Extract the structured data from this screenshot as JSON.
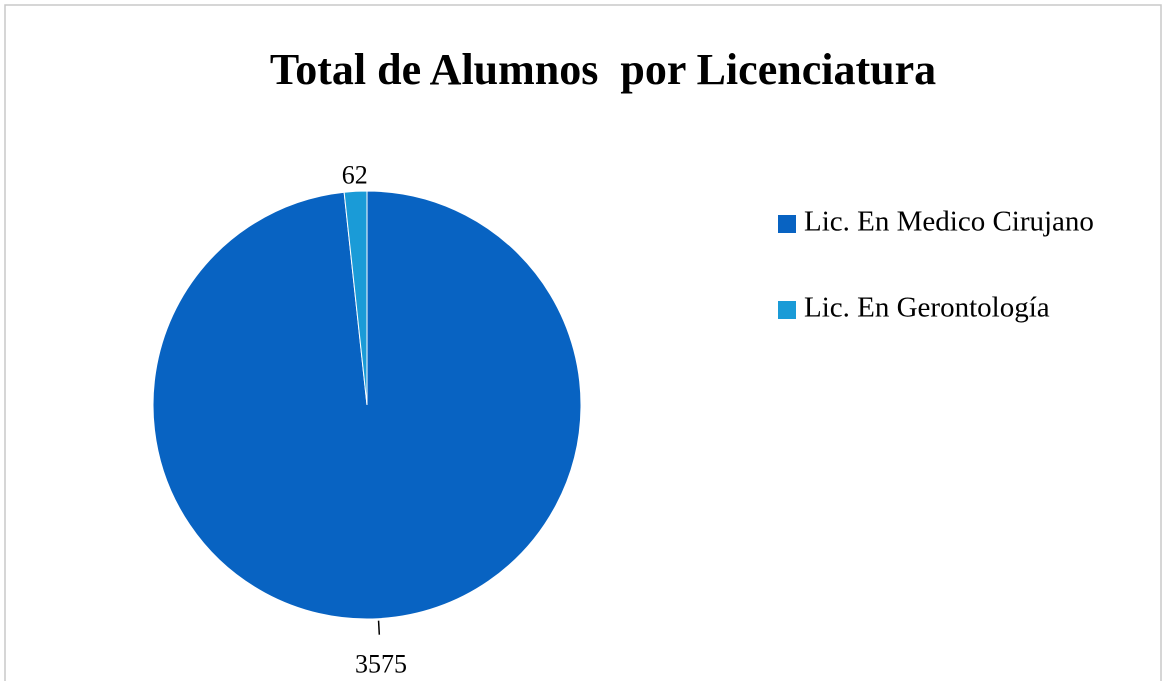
{
  "chart_data": {
    "type": "pie",
    "title": "Total de Alumnos  por Licenciatura",
    "categories": [
      "Lic. En Medico Cirujano",
      "Lic. En Gerontología"
    ],
    "values": [
      3575,
      62
    ],
    "colors": [
      "#0863c2",
      "#1a9bd7"
    ],
    "legend": "right"
  }
}
